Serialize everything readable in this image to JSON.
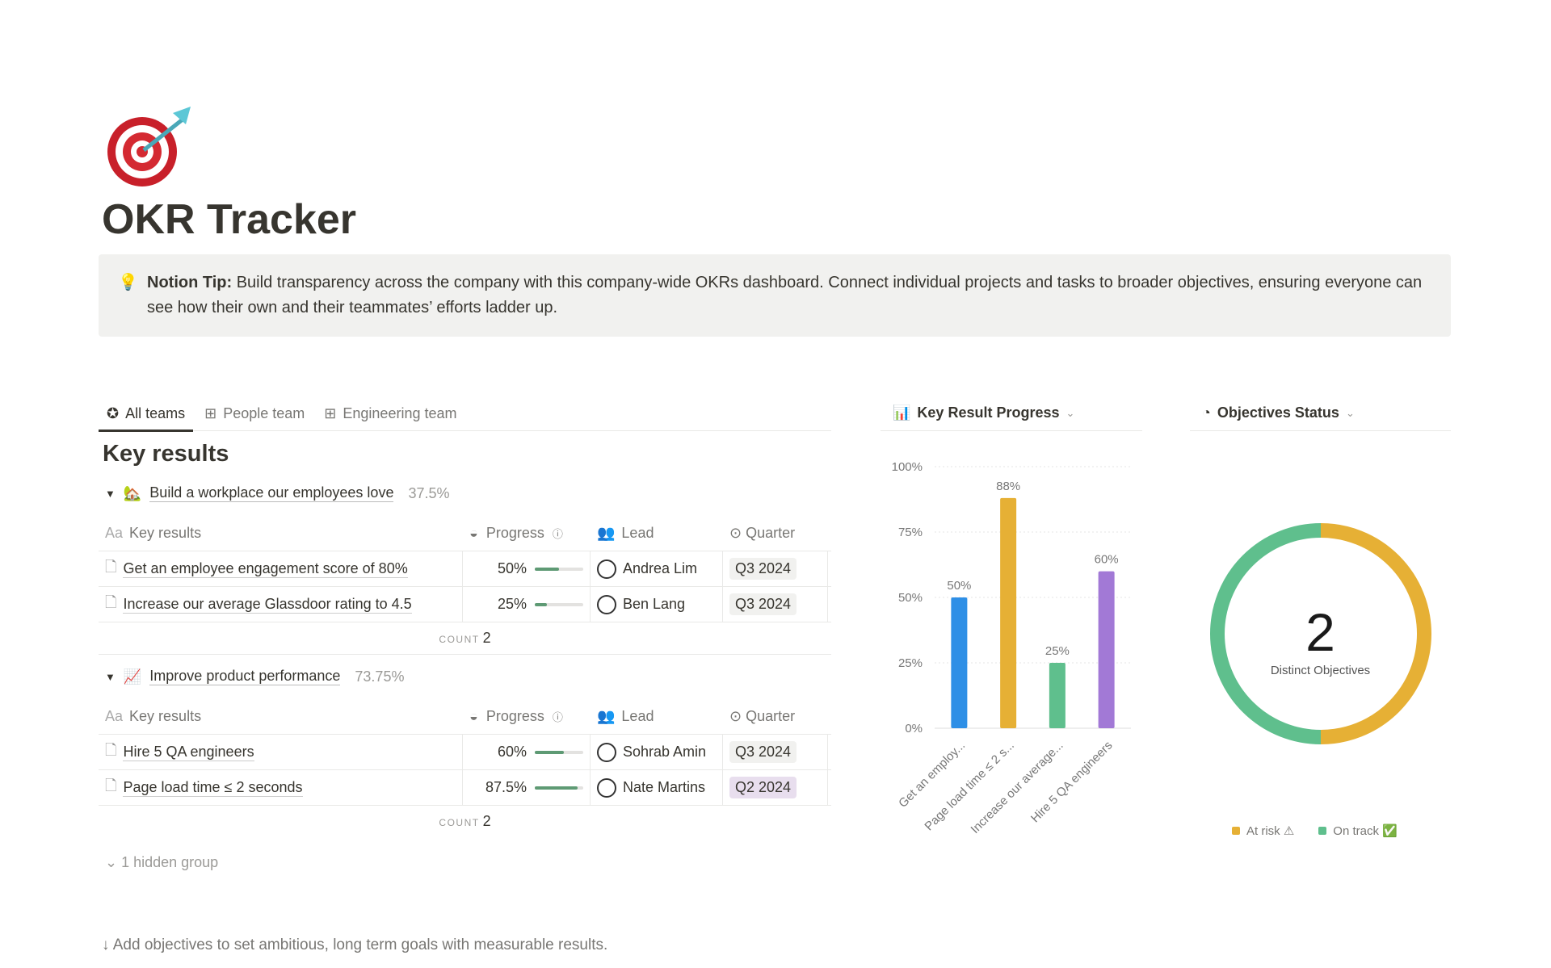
{
  "page": {
    "icon": "target-dart-icon",
    "title": "OKR Tracker",
    "callout": {
      "icon": "lightbulb-icon",
      "bold": "Notion Tip:",
      "text": " Build transparency across the company with this company-wide OKRs dashboard. Connect individual projects and tasks to broader objectives, ensuring everyone can see how their own and their teammates’ efforts ladder up."
    }
  },
  "tabs": [
    {
      "label": "All teams",
      "icon": "star-circle-icon",
      "active": true
    },
    {
      "label": "People team",
      "icon": "table-icon"
    },
    {
      "label": "Engineering team",
      "icon": "table-icon"
    }
  ],
  "section_title": "Key results",
  "columns": {
    "key_results": "Key results",
    "progress": "Progress",
    "lead": "Lead",
    "quarter": "Quarter"
  },
  "groups": [
    {
      "emoji": "🏡",
      "name": "Build a workplace our employees love",
      "percent": "37.5%",
      "rows": [
        {
          "title": "Get an employee engagement score of 80%",
          "progress": "50%",
          "progress_value": 50,
          "lead": "Andrea Lim",
          "quarter": "Q3 2024"
        },
        {
          "title": "Increase our average Glassdoor rating to 4.5",
          "progress": "25%",
          "progress_value": 25,
          "lead": "Ben Lang",
          "quarter": "Q3 2024"
        }
      ],
      "count_label": "COUNT",
      "count": "2"
    },
    {
      "emoji": "📈",
      "name": "Improve product performance",
      "percent": "73.75%",
      "rows": [
        {
          "title": "Hire 5 QA engineers",
          "progress": "60%",
          "progress_value": 60,
          "lead": "Sohrab Amin",
          "quarter": "Q3 2024"
        },
        {
          "title": "Page load time ≤ 2 seconds",
          "progress": "87.5%",
          "progress_value": 87.5,
          "lead": "Nate Martins",
          "quarter": "Q2 2024"
        }
      ],
      "count_label": "COUNT",
      "count": "2"
    }
  ],
  "hidden_group": "1 hidden group",
  "footer_text": "↓ Add objectives to set ambitious, long term goals with measurable results.",
  "chart_data": [
    {
      "type": "bar",
      "title": "Key Result Progress",
      "categories": [
        "Get an employ...",
        "Page load time ≤ 2 s...",
        "Increase our average...",
        "Hire 5 QA engineers"
      ],
      "values": [
        50,
        88,
        25,
        60
      ],
      "value_labels": [
        "50%",
        "88%",
        "25%",
        "60%"
      ],
      "colors": [
        "#2e8fe6",
        "#e6b035",
        "#5fbf8d",
        "#a279d6"
      ],
      "ylim": [
        0,
        100
      ],
      "yticks": [
        "0%",
        "25%",
        "50%",
        "75%",
        "100%"
      ],
      "grid": true
    },
    {
      "type": "pie",
      "title": "Objectives Status",
      "center_value": "2",
      "center_label": "Distinct Objectives",
      "slices": [
        {
          "label": "At risk ⚠",
          "value": 1,
          "color": "#e6b035"
        },
        {
          "label": "On track ✅",
          "value": 1,
          "color": "#5fbf8d"
        }
      ],
      "legend": "bottom"
    }
  ]
}
